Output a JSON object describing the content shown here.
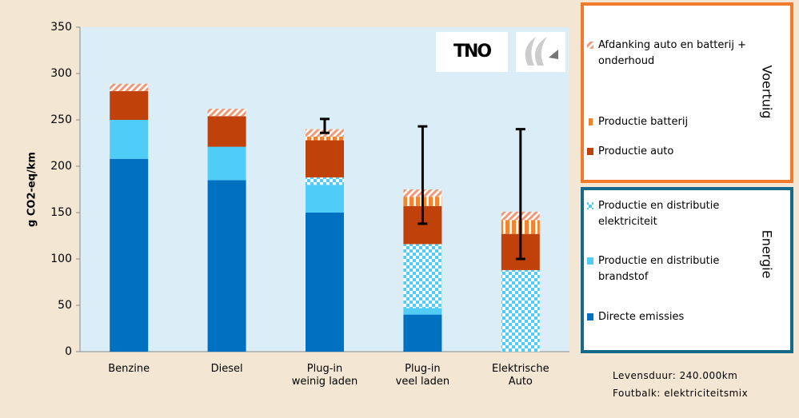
{
  "chart_data": {
    "type": "stacked_bar",
    "y_label": "g CO2-eq/km",
    "categories": [
      "Benzine",
      "Diesel",
      "Plug-in\nweinig laden",
      "Plug-in\nveel laden",
      "Elektrische\nAuto"
    ],
    "series": [
      {
        "name": "Directe emissies",
        "color": "#0070c0",
        "pattern": "solid",
        "group": "Energie",
        "values": [
          208,
          185,
          150,
          40,
          0
        ]
      },
      {
        "name": "Productie en distributie\nbrandstof",
        "color": "#4fcdf6",
        "pattern": "solid",
        "group": "Energie",
        "values": [
          42,
          36,
          30,
          7,
          0
        ]
      },
      {
        "name": "Productie en distributie\nelektriciteit",
        "color": "#4fcdf6",
        "pattern": "checker",
        "group": "Energie",
        "values": [
          0,
          0,
          8,
          69,
          88
        ]
      },
      {
        "name": "Productie auto",
        "color": "#c0420a",
        "pattern": "solid",
        "group": "Voertuig",
        "values": [
          31,
          33,
          40,
          41,
          39
        ]
      },
      {
        "name": "Productie batterij",
        "color": "#f5822f",
        "pattern": "stripes",
        "group": "Voertuig",
        "values": [
          0,
          0,
          4,
          10,
          15
        ]
      },
      {
        "name": "Afdanking auto en batterij +\nonderhoud",
        "color": "#f29a78",
        "pattern": "hatch",
        "group": "Voertuig",
        "values": [
          8,
          8,
          8,
          8,
          9
        ]
      }
    ],
    "error_range": [
      null,
      null,
      [
        236,
        251
      ],
      [
        138,
        243
      ],
      [
        100,
        240
      ]
    ],
    "groups": [
      "Voertuig",
      "Energie"
    ],
    "ylim": [
      0,
      350
    ],
    "yticks": [
      0,
      50,
      100,
      150,
      200,
      250,
      300,
      350
    ],
    "logo_text": "TNO",
    "notes": [
      "Levensduur: 240.000km",
      "Foutbalk: elektriciteitsmix"
    ]
  }
}
